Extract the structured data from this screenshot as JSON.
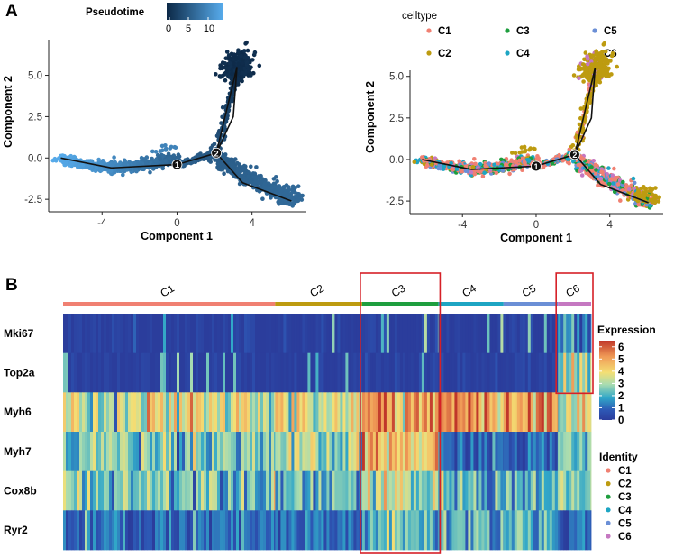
{
  "panel_labels": {
    "a": "A",
    "b": "B"
  },
  "colors": {
    "C1": "#f08072",
    "C2": "#bd9b10",
    "C3": "#1e9e3e",
    "C4": "#1da5c3",
    "C5": "#6b8fd6",
    "C6": "#c578c1",
    "pseudo_dark": "#0c2846",
    "pseudo_light": "#56aaea",
    "highlight": "#d62027",
    "heat_low": "#2b3d9c",
    "heat_high": "#c0372a"
  },
  "chart_data": [
    {
      "type": "scatter",
      "title": "",
      "color_legend": {
        "title": "Pseudotime",
        "ticks": [
          0,
          5,
          10
        ]
      },
      "xlabel": "Component 1",
      "ylabel": "Component 2",
      "xlim": [
        -6.8,
        6.9
      ],
      "ylim": [
        -3.2,
        7.1
      ],
      "xticks": [
        "-4",
        "0",
        "4"
      ],
      "xtick_values": [
        -4,
        0,
        4
      ],
      "yticks": [
        "-2.5",
        "0.0",
        "2.5",
        "5.0"
      ],
      "ytick_values": [
        -2.5,
        0,
        2.5,
        5
      ],
      "branch_points": [
        {
          "label": "1",
          "x": 0,
          "y": -0.4
        },
        {
          "label": "2",
          "x": 2.1,
          "y": 0.3
        }
      ],
      "trajectory": [
        [
          -6.2,
          0
        ],
        [
          -3.5,
          -0.6
        ],
        [
          0,
          -0.4
        ],
        [
          2.1,
          0.3
        ],
        [
          3,
          2.5
        ],
        [
          3.2,
          5.5
        ],
        [
          2.1,
          0.3
        ],
        [
          3.5,
          -1.5
        ],
        [
          6.1,
          -2.6
        ]
      ]
    },
    {
      "type": "scatter",
      "title": "",
      "color_legend": {
        "title": "celltype",
        "entries": [
          "C1",
          "C2",
          "C3",
          "C4",
          "C5",
          "C6"
        ]
      },
      "xlabel": "Component 1",
      "ylabel": "Component 2",
      "xlim": [
        -6.8,
        6.9
      ],
      "ylim": [
        -3.2,
        7.1
      ],
      "xticks": [
        "-4",
        "0",
        "4"
      ],
      "xtick_values": [
        -4,
        0,
        4
      ],
      "yticks": [
        "-2.5",
        "0.0",
        "2.5",
        "5.0"
      ],
      "ytick_values": [
        -2.5,
        0,
        2.5,
        5
      ],
      "branch_points": [
        {
          "label": "1",
          "x": 0,
          "y": -0.4
        },
        {
          "label": "2",
          "x": 2.1,
          "y": 0.3
        }
      ]
    },
    {
      "type": "heatmap",
      "rows": [
        "Mki67",
        "Top2a",
        "Myh6",
        "Myh7",
        "Cox8b",
        "Ryr2"
      ],
      "clusters": [
        {
          "name": "C1",
          "share": 0.39
        },
        {
          "name": "C2",
          "share": 0.16
        },
        {
          "name": "C3",
          "share": 0.14
        },
        {
          "name": "C4",
          "share": 0.12
        },
        {
          "name": "C5",
          "share": 0.1
        },
        {
          "name": "C6",
          "share": 0.061
        }
      ],
      "mean_expression": {
        "Mki67": [
          0.05,
          0.05,
          0.05,
          0.05,
          0.05,
          1.6
        ],
        "Top2a": [
          0.1,
          0.1,
          0.1,
          0.1,
          0.1,
          2.9
        ],
        "Myh6": [
          3.5,
          3.4,
          5.2,
          5.2,
          5.2,
          3.4
        ],
        "Myh7": [
          2.6,
          2.6,
          4.4,
          0.8,
          0.8,
          2.6
        ],
        "Cox8b": [
          2.6,
          2.3,
          2.9,
          2.1,
          2.1,
          2.4
        ],
        "Ryr2": [
          0.9,
          0.9,
          2.1,
          2.1,
          2.1,
          0.6
        ]
      },
      "highlighted_clusters": [
        "C3",
        "C6"
      ],
      "expression_legend": {
        "title": "Expression",
        "ticks": [
          "6",
          "5",
          "4",
          "3",
          "2",
          "1",
          "0"
        ],
        "range": [
          0,
          6.5
        ]
      },
      "identity_legend": {
        "title": "Identity",
        "entries": [
          "C1",
          "C2",
          "C3",
          "C4",
          "C5",
          "C6"
        ]
      }
    }
  ]
}
